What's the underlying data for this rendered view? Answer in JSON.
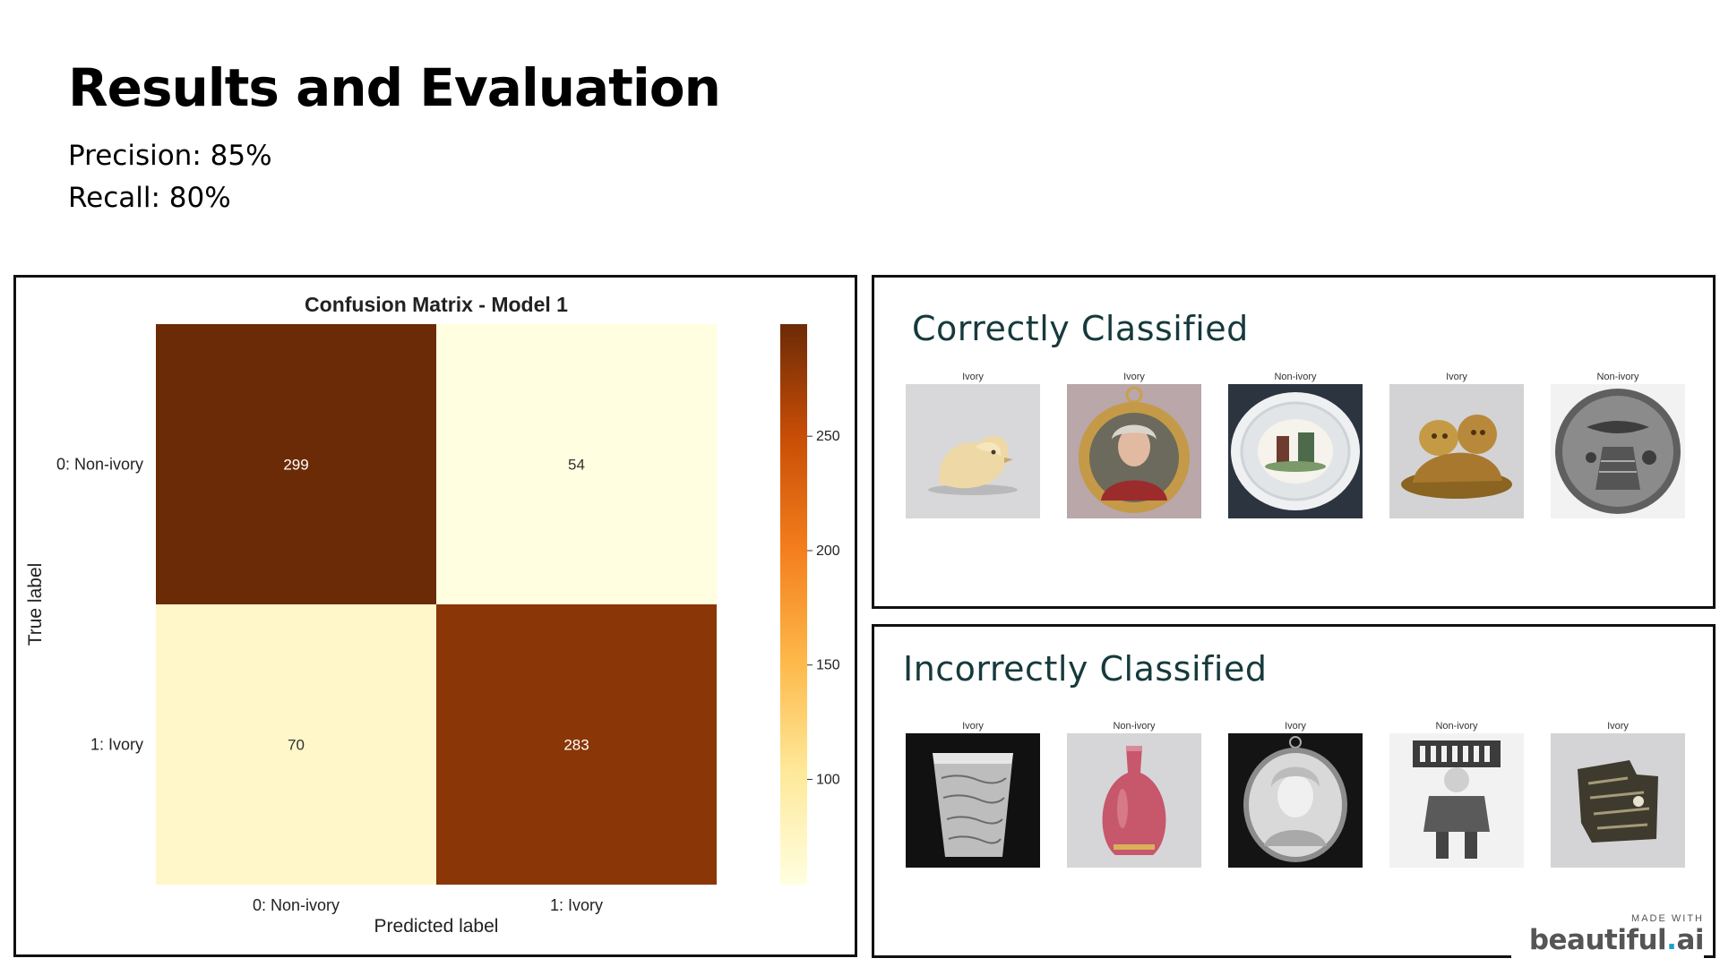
{
  "slide": {
    "title": "Results and Evaluation",
    "precision": "Precision: 85%",
    "recall": "Recall: 80%"
  },
  "confusion_panel": {
    "chart_data": {
      "type": "heatmap",
      "title": "Confusion Matrix - Model 1",
      "xlabel": "Predicted label",
      "ylabel": "True label",
      "x_categories": [
        "0: Non-ivory",
        "1: Ivory"
      ],
      "y_categories": [
        "0: Non-ivory",
        "1: Ivory"
      ],
      "values": [
        [
          299,
          54
        ],
        [
          70,
          283
        ]
      ],
      "colorbar": {
        "colormap": "YlOrBr",
        "ticks": [
          100,
          150,
          200,
          250
        ],
        "range": [
          54,
          299
        ]
      }
    }
  },
  "correct_panel": {
    "heading": "Correctly Classified",
    "items": [
      {
        "label": "Ivory",
        "icon": "ivory-bird-figurine-photo"
      },
      {
        "label": "Ivory",
        "icon": "portrait-miniature-gold-frame-photo"
      },
      {
        "label": "Non-ivory",
        "icon": "painted-porcelain-plate-photo"
      },
      {
        "label": "Ivory",
        "icon": "carved-netsuke-figures-photo"
      },
      {
        "label": "Non-ivory",
        "icon": "carved-stone-seal-photo"
      }
    ]
  },
  "incorrect_panel": {
    "heading": "Incorrectly Classified",
    "items": [
      {
        "label": "Ivory",
        "icon": "carved-beaker-bw-photo"
      },
      {
        "label": "Non-ivory",
        "icon": "pink-vase-photo"
      },
      {
        "label": "Ivory",
        "icon": "oval-portrait-bw-photo"
      },
      {
        "label": "Non-ivory",
        "icon": "porcelain-figure-bw-photo"
      },
      {
        "label": "Ivory",
        "icon": "carved-plaque-fragment-photo"
      }
    ]
  },
  "badge": {
    "made_with": "MADE WITH",
    "brand_main": "beautiful",
    "brand_dot": ".",
    "brand_tail": "ai"
  },
  "colors": {
    "heading_teal": "#163a3c",
    "brand_dot": "#1ba0c8",
    "cell_dark": "#6c2b07",
    "cell_light": "#fffee6"
  }
}
